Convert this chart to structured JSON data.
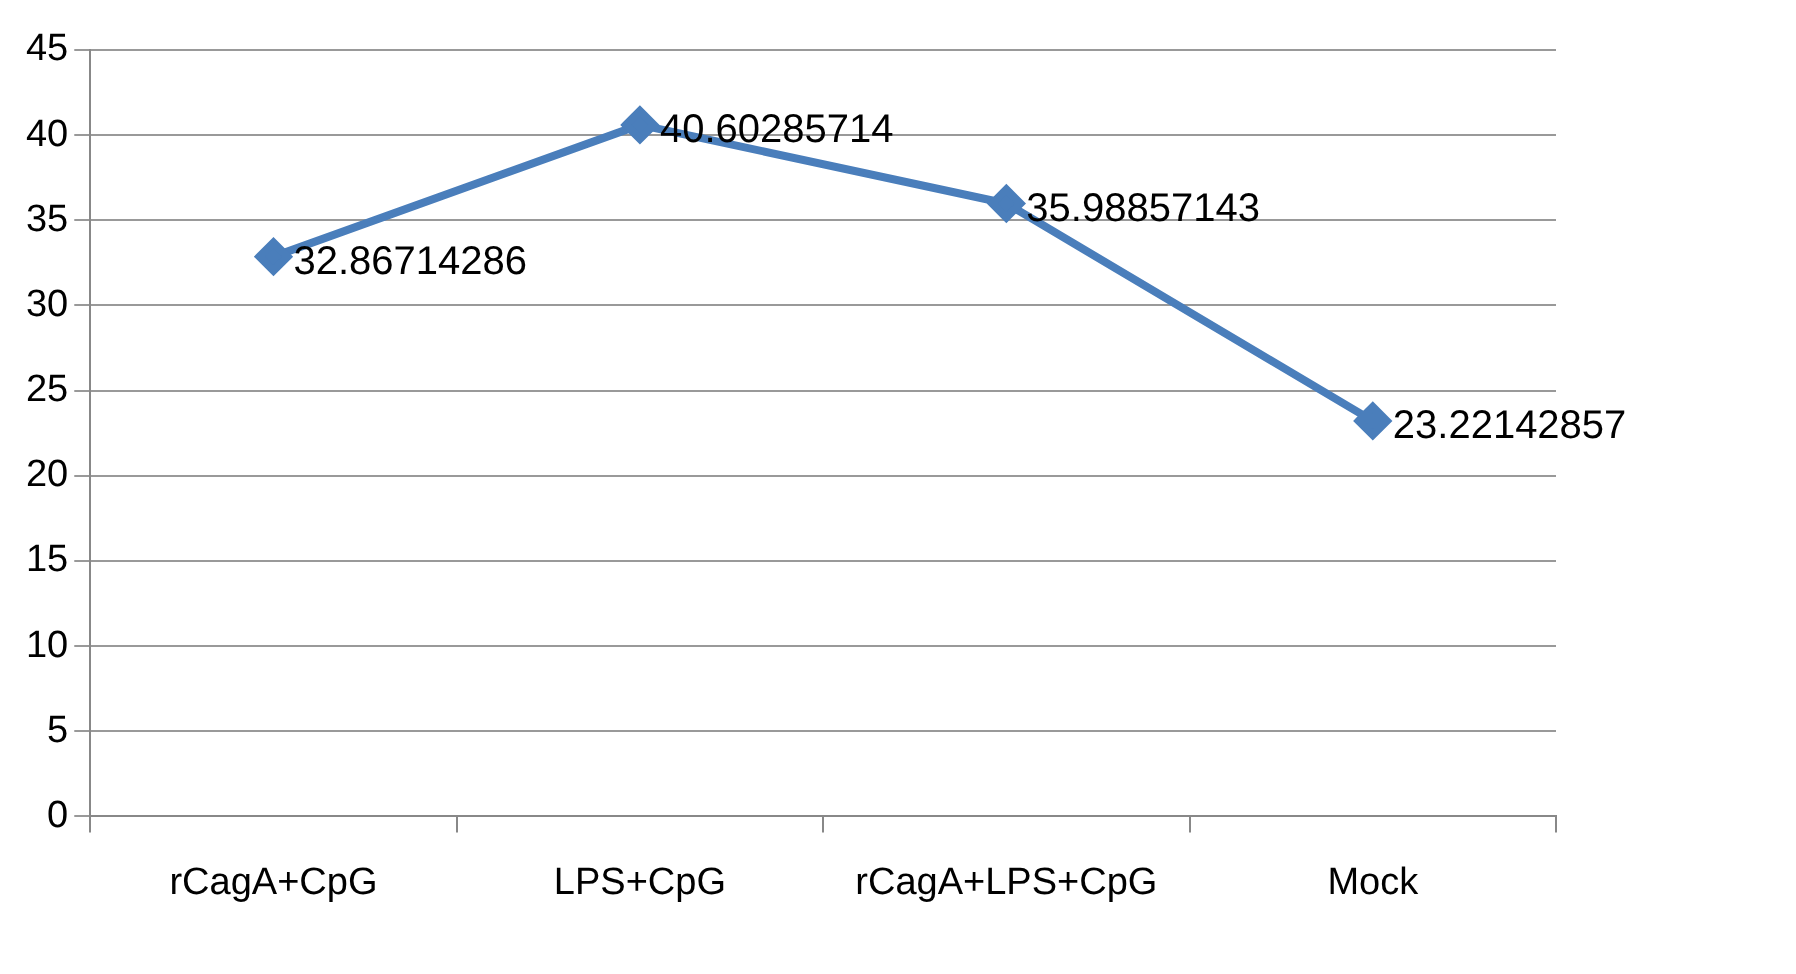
{
  "chart_data": {
    "type": "line",
    "categories": [
      "rCagA+CpG",
      "LPS+CpG",
      "rCagA+LPS+CpG",
      "Mock"
    ],
    "series": [
      {
        "color": "#4a7ebb",
        "values": [
          32.86714286,
          40.60285714,
          35.98857143,
          23.22142857
        ]
      }
    ],
    "ylim": [
      0,
      45
    ],
    "yticks": [
      0,
      5,
      10,
      15,
      20,
      25,
      30,
      35,
      40,
      45
    ],
    "grid": "y",
    "legend": false,
    "marker": "diamond",
    "line_style": "solid",
    "data_labels": true
  }
}
